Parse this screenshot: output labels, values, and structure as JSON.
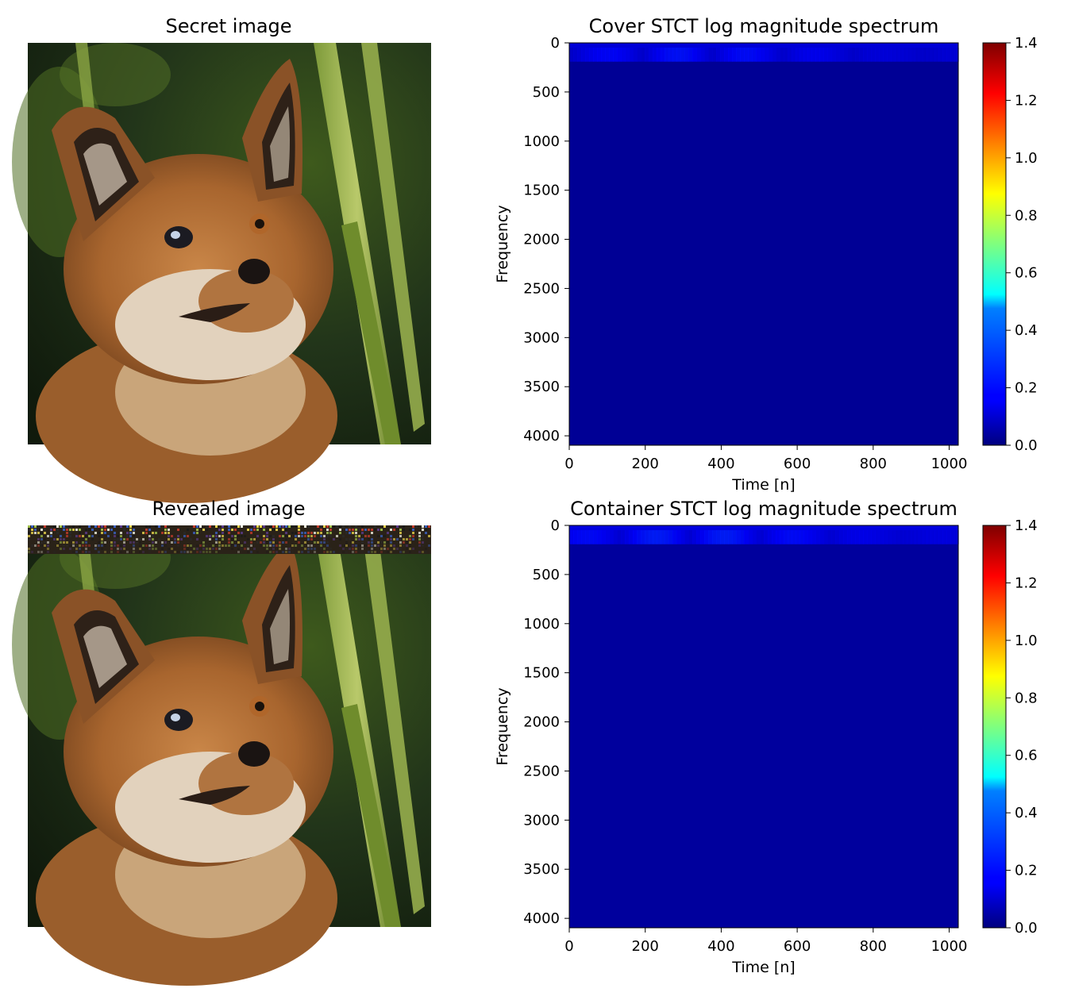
{
  "figure": {
    "panels": [
      {
        "kind": "image",
        "title": "Secret image",
        "subject": "fox-kit-photo"
      },
      {
        "kind": "image",
        "title": "Revealed image",
        "subject": "fox-kit-photo-noisy-top"
      }
    ]
  },
  "chart_data": [
    {
      "type": "heatmap",
      "title": "Cover STCT log magnitude spectrum",
      "xlabel": "Time [n]",
      "ylabel": "Frequency",
      "xlim": [
        0,
        1024
      ],
      "ylim": [
        4096,
        0
      ],
      "xticks": [
        0,
        200,
        400,
        600,
        800,
        1000
      ],
      "yticks": [
        0,
        500,
        1000,
        1500,
        2000,
        2500,
        3000,
        3500,
        4000
      ],
      "colormap": "jet",
      "colorbar": {
        "range": [
          0.0,
          1.4
        ],
        "ticks": [
          "0.0",
          "0.2",
          "0.4",
          "0.6",
          "0.8",
          "1.0",
          "1.2",
          "1.4"
        ]
      },
      "energy_band": {
        "freq_range": [
          0,
          260
        ],
        "peak_value": 0.2
      },
      "background_value": 0.03
    },
    {
      "type": "heatmap",
      "title": "Container STCT log magnitude spectrum",
      "xlabel": "Time [n]",
      "ylabel": "Frequency",
      "xlim": [
        0,
        1024
      ],
      "ylim": [
        4096,
        0
      ],
      "xticks": [
        0,
        200,
        400,
        600,
        800,
        1000
      ],
      "yticks": [
        0,
        500,
        1000,
        1500,
        2000,
        2500,
        3000,
        3500,
        4000
      ],
      "colormap": "jet",
      "colorbar": {
        "range": [
          0.0,
          1.4
        ],
        "ticks": [
          "0.0",
          "0.2",
          "0.4",
          "0.6",
          "0.8",
          "1.0",
          "1.2",
          "1.4"
        ]
      },
      "energy_band": {
        "freq_range": [
          0,
          260
        ],
        "peak_value": 0.22
      },
      "background_value": 0.04
    }
  ],
  "colors": {
    "jet_dark_blue": "#00007f",
    "heatmap_bg_cover": "#00009c",
    "heatmap_bg_container": "#0000a3",
    "band_highlight": "#1a36e8"
  }
}
